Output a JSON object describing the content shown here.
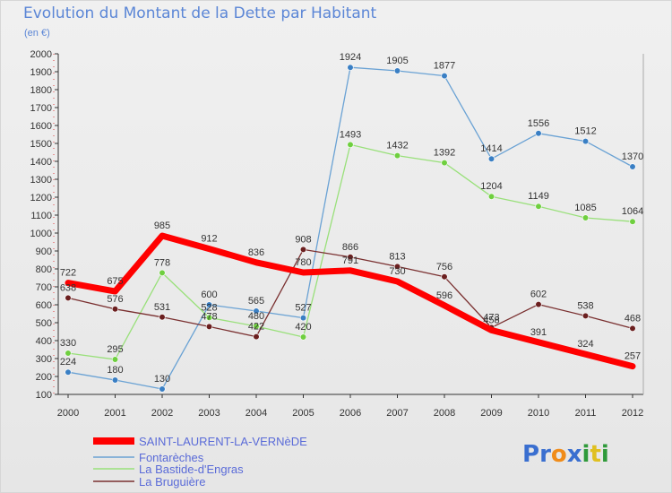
{
  "chart_data": {
    "type": "line",
    "title": "Evolution du Montant de la Dette par Habitant",
    "subtitle": "(en €)",
    "xlabel": "",
    "ylabel": "",
    "x": [
      "2000",
      "2001",
      "2002",
      "2003",
      "2004",
      "2005",
      "2006",
      "2007",
      "2008",
      "2009",
      "2010",
      "2011",
      "2012"
    ],
    "ylim": [
      100,
      2000
    ],
    "yticks": [
      100,
      200,
      300,
      400,
      500,
      600,
      700,
      800,
      900,
      1000,
      1100,
      1200,
      1300,
      1400,
      1500,
      1600,
      1700,
      1800,
      1900,
      2000
    ],
    "grid": false,
    "legend_position": "bottom-left",
    "series": [
      {
        "name": "SAINT-LAURENT-LA-VERNèDE",
        "color": "#ff0000",
        "width": 7,
        "dots": false,
        "values": [
          722,
          675,
          985,
          912,
          836,
          780,
          791,
          730,
          596,
          458,
          391,
          324,
          257
        ]
      },
      {
        "name": "Fontarèches",
        "color": "#6aa2d4",
        "dotColor": "#3a7fc4",
        "width": 1.3,
        "dots": true,
        "values": [
          224,
          180,
          130,
          600,
          565,
          527,
          1924,
          1905,
          1877,
          1414,
          1556,
          1512,
          1370
        ]
      },
      {
        "name": "La Bastide-d'Engras",
        "color": "#99e07a",
        "dotColor": "#6fcf3f",
        "width": 1.3,
        "dots": true,
        "values": [
          330,
          295,
          778,
          528,
          480,
          420,
          1493,
          1432,
          1392,
          1204,
          1149,
          1085,
          1064
        ]
      },
      {
        "name": "La Bruguière",
        "color": "#7a3030",
        "dotColor": "#6b1f1f",
        "width": 1.3,
        "dots": true,
        "values": [
          638,
          576,
          531,
          478,
          422,
          908,
          866,
          813,
          756,
          473,
          602,
          538,
          468
        ]
      }
    ]
  },
  "logo": {
    "text": "Proxiti",
    "letters": [
      "P",
      "r",
      "o",
      "x",
      "i",
      "t",
      "i"
    ],
    "colors": [
      "#3a6fd0",
      "#3a6fd0",
      "#f08c1a",
      "#3a6fd0",
      "#2f9a3a",
      "#e0c020",
      "#2f9a3a"
    ]
  }
}
